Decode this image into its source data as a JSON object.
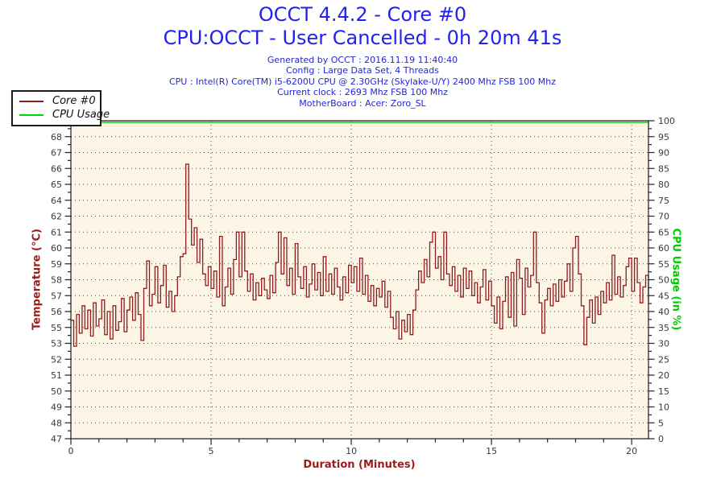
{
  "title": {
    "line1": "OCCT 4.4.2 - Core #0",
    "line2": "CPU:OCCT - User Cancelled - 0h 20m 41s"
  },
  "info": {
    "line1": "Generated by OCCT : 2016.11.19 11:40:40",
    "line2": "Config : Large Data Set, 4 Threads",
    "line3": "CPU : Intel(R) Core(TM) i5-6200U CPU @ 2.30GHz (Skylake-U/Y) 2400 Mhz FSB 100 Mhz",
    "line4": "Current clock : 2693 Mhz FSB 100 Mhz",
    "line5": "MotherBoard : Acer: Zoro_SL"
  },
  "legend": {
    "items": [
      {
        "label": "Core #0",
        "color": "#8f1d1d"
      },
      {
        "label": "CPU Usage",
        "color": "#00dd00"
      }
    ]
  },
  "colors": {
    "title_blue": "#2222ee",
    "info_blue": "#2424d9",
    "temperature_red": "#8f1d1d",
    "cpu_green": "#00dd00",
    "axis_label_red": "#9b1b1b",
    "axis_label_green": "#00cc00",
    "plot_background": "#fdf5e6",
    "grid_dot": "#4a4a4a",
    "tick_text": "#3a3a3a"
  },
  "chart_data": {
    "type": "line",
    "xlabel": "Duration (Minutes)",
    "ylabel_left": "Temperature (°C)",
    "ylabel_right": "CPU Usage (in %)",
    "x_axis": {
      "min": 0,
      "max": 20.6,
      "major_ticks": [
        0,
        5,
        10,
        15,
        20
      ],
      "minor_step": 1
    },
    "y_left": {
      "min": 47,
      "max": 69,
      "tick_labels_bottom_to_top": [
        47,
        48,
        49,
        50,
        51,
        52,
        53,
        55,
        56,
        57,
        58,
        59,
        60,
        61,
        62,
        64,
        65,
        66,
        67,
        68,
        69
      ]
    },
    "y_right": {
      "min": 0,
      "max": 100,
      "tick_step": 5
    },
    "grid": {
      "h_dotted": true,
      "v_dotted_at": [
        5,
        10,
        15,
        20
      ]
    },
    "plot_bg": "#fdf5e6",
    "series": [
      {
        "name": "Core #0",
        "color": "#8f1d1d",
        "axis": "left",
        "style": "step",
        "x_start": 0,
        "x_step": 0.1,
        "values": [
          55.2,
          53.4,
          55.6,
          54.3,
          56.2,
          54.6,
          55.9,
          54.1,
          56.4,
          54.8,
          55.3,
          56.6,
          54.2,
          55.8,
          53.9,
          56.2,
          54.5,
          55.1,
          56.7,
          54.4,
          55.9,
          56.8,
          55.2,
          57.1,
          55.6,
          53.8,
          57.4,
          59.3,
          56.2,
          57.0,
          58.9,
          56.4,
          57.6,
          59.0,
          56.1,
          57.2,
          55.8,
          56.9,
          58.2,
          59.6,
          59.8,
          66.0,
          62.2,
          60.4,
          61.6,
          59.2,
          60.8,
          58.4,
          57.6,
          58.9,
          57.4,
          58.6,
          56.8,
          61.0,
          56.2,
          57.5,
          58.8,
          57.0,
          59.4,
          61.3,
          58.2,
          61.3,
          58.6,
          57.2,
          58.4,
          56.6,
          57.8,
          56.9,
          58.1,
          57.3,
          56.7,
          58.3,
          57.1,
          59.2,
          61.3,
          58.4,
          60.9,
          57.6,
          58.8,
          57.0,
          60.5,
          58.2,
          57.4,
          58.9,
          56.8,
          57.7,
          59.1,
          57.3,
          58.5,
          56.9,
          59.6,
          57.2,
          58.4,
          57.0,
          58.8,
          57.5,
          56.6,
          58.2,
          57.1,
          59.0,
          57.8,
          58.9,
          57.2,
          59.5,
          57.0,
          58.3,
          56.5,
          57.6,
          56.2,
          57.4,
          56.8,
          57.9,
          56.1,
          57.2,
          55.4,
          54.6,
          55.8,
          53.9,
          55.2,
          54.4,
          55.6,
          54.2,
          55.9,
          57.3,
          58.6,
          57.8,
          59.4,
          58.2,
          60.6,
          61.3,
          58.8,
          59.6,
          58.0,
          61.3,
          58.4,
          57.6,
          58.9,
          57.2,
          58.3,
          56.8,
          58.8,
          57.4,
          58.6,
          56.9,
          57.8,
          56.4,
          57.5,
          58.7,
          56.6,
          57.9,
          56.2,
          55.0,
          56.8,
          54.6,
          56.5,
          58.2,
          55.4,
          58.5,
          54.8,
          59.4,
          58.1,
          55.6,
          58.8,
          57.5,
          58.3,
          61.3,
          57.8,
          56.4,
          54.3,
          56.6,
          57.4,
          56.2,
          57.7,
          56.5,
          58.0,
          56.8,
          57.9,
          59.1,
          57.2,
          60.2,
          61.0,
          58.4,
          56.2,
          53.5,
          55.4,
          56.6,
          55.0,
          56.8,
          55.6,
          57.2,
          56.4,
          57.8,
          56.6,
          59.7,
          57.0,
          58.2,
          56.8,
          57.6,
          58.9,
          59.5,
          57.2,
          59.5,
          57.8,
          56.4,
          57.5,
          58.3,
          56.5
        ]
      },
      {
        "name": "CPU Usage",
        "color": "#00dd00",
        "axis": "right",
        "style": "constant",
        "constant_value": 100,
        "x_range": [
          0,
          20.6
        ]
      }
    ]
  }
}
